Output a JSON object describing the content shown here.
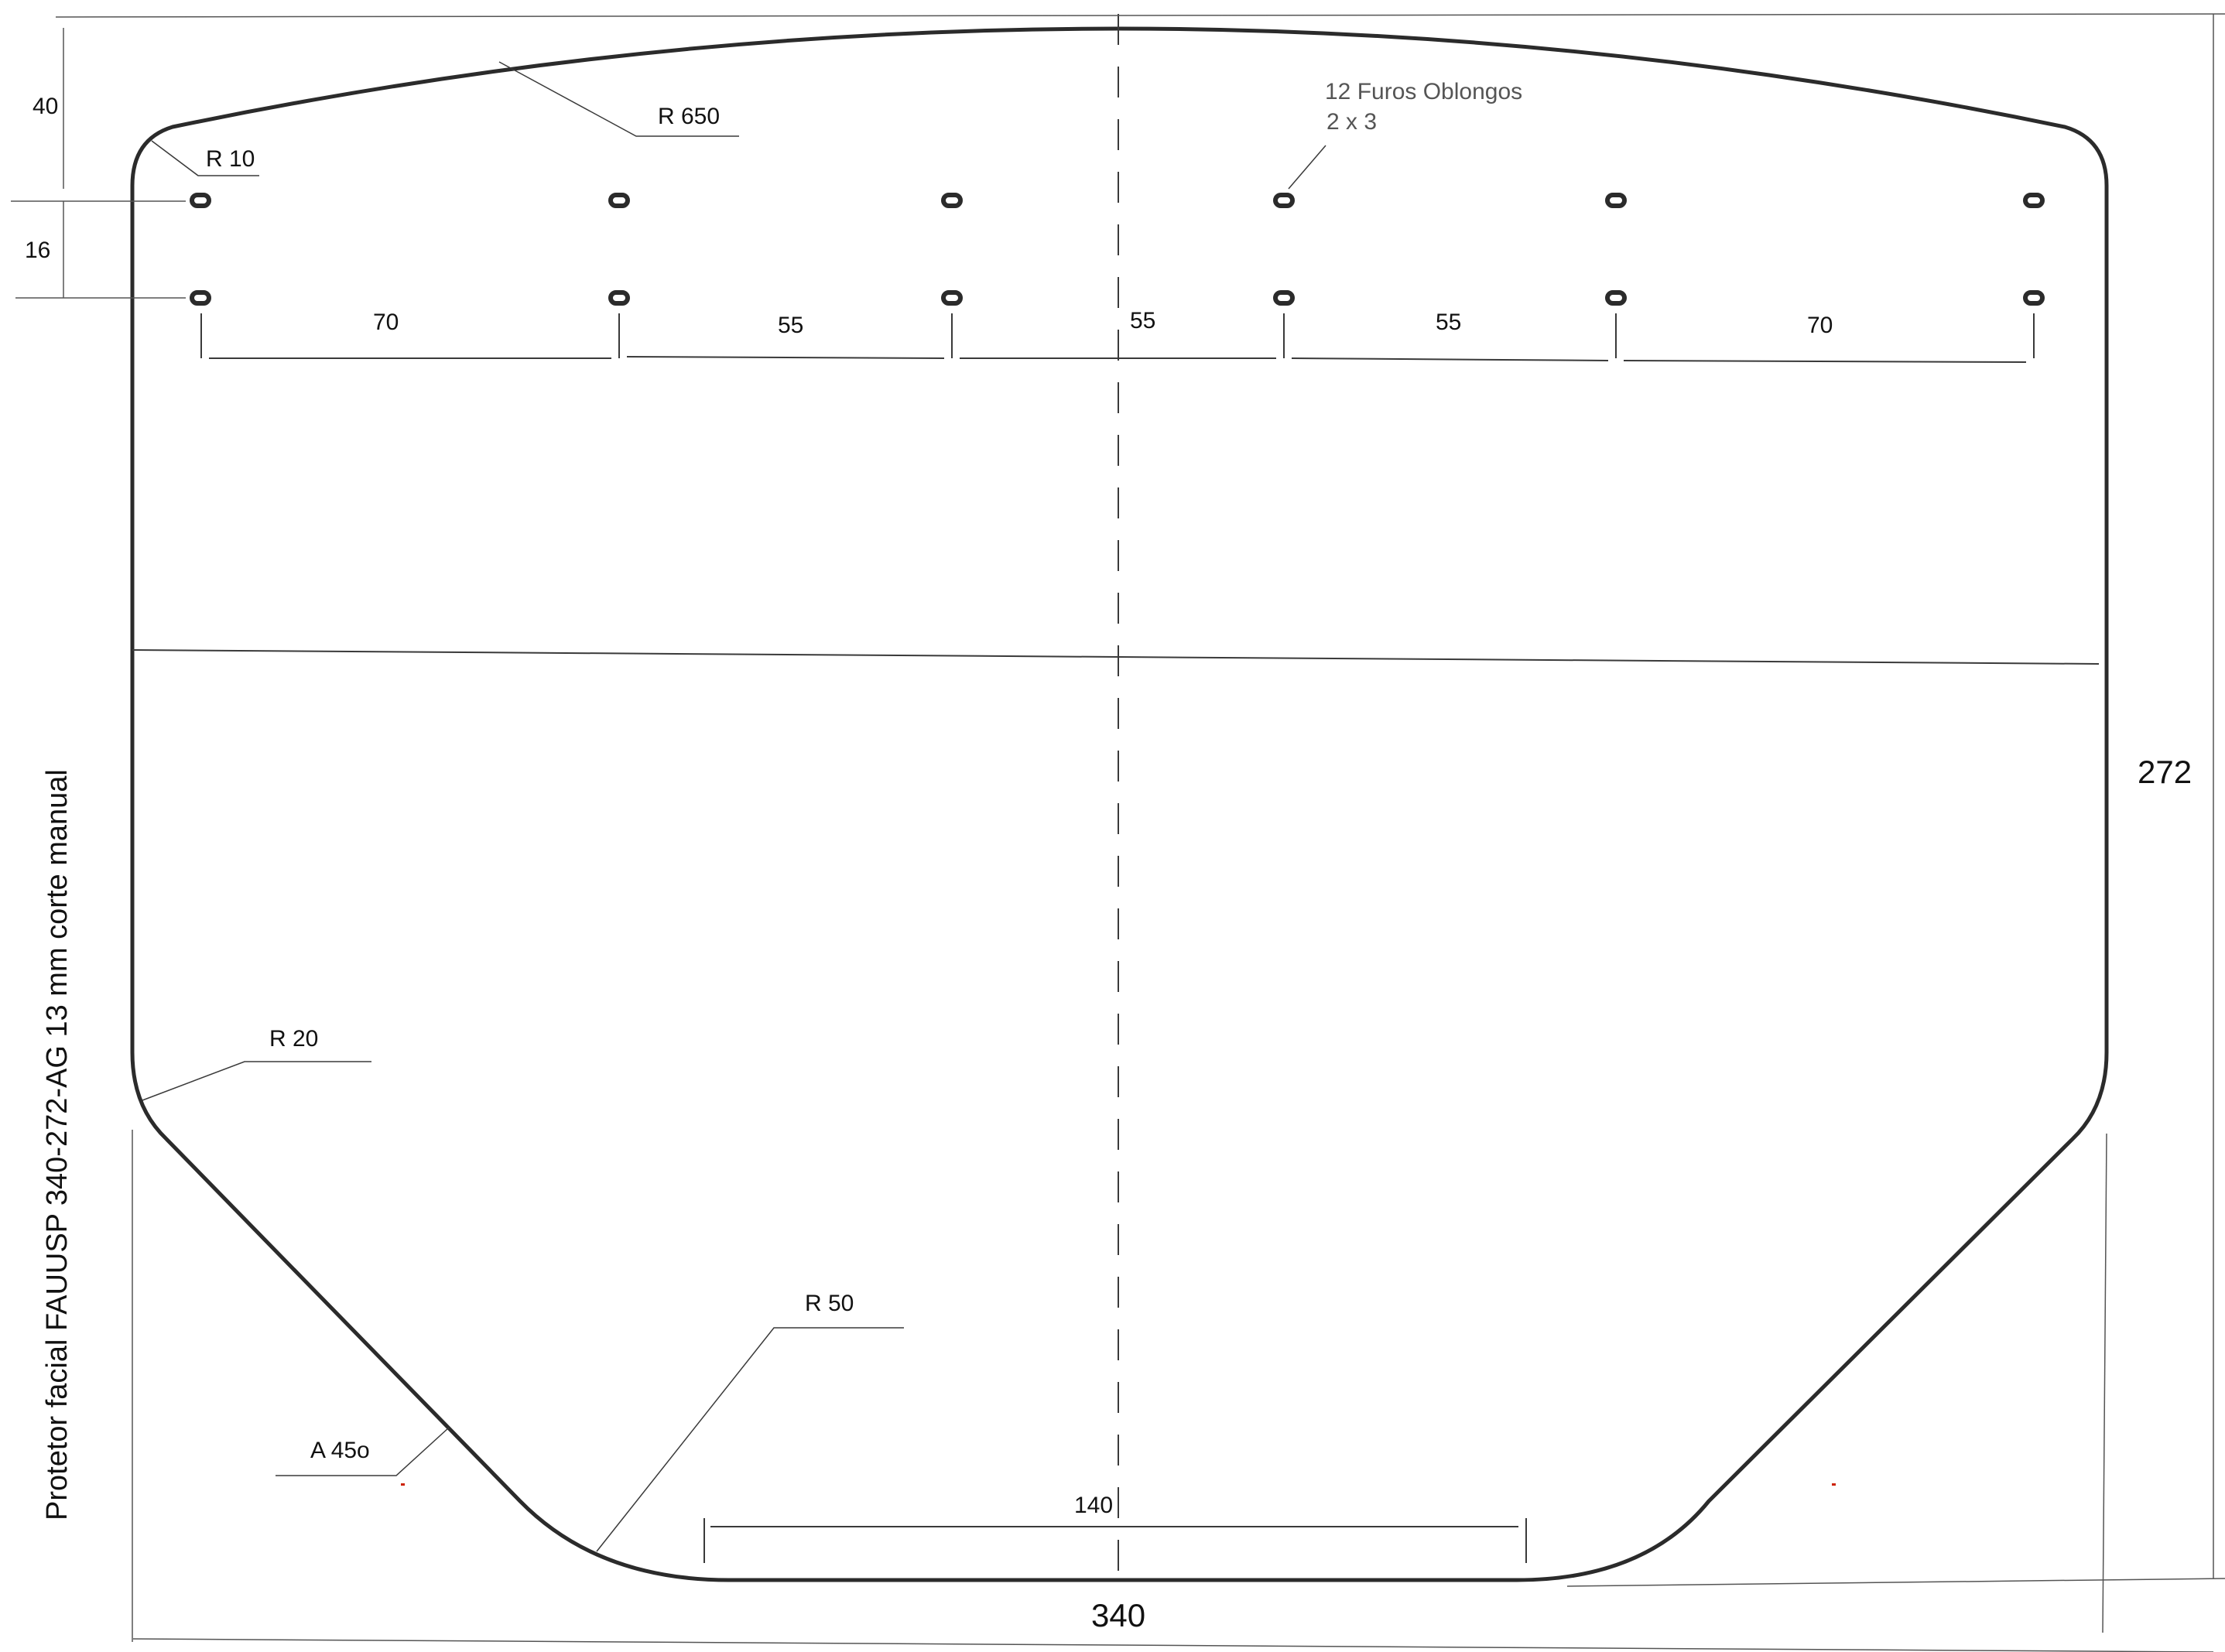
{
  "drawing": {
    "title": "Protetor facial FAUUSP 340-272-AG 13 mm corte manual",
    "overall_width": "340",
    "overall_height": "272",
    "top_offset": "40",
    "hole_row_spacing": "16",
    "hole_note_line1": "12 Furos Oblongos",
    "hole_note_line2": "2 x 3",
    "hole_spacings": [
      "70",
      "55",
      "55",
      "55",
      "70"
    ],
    "radius_top_arc": "R 650",
    "radius_top_corner": "R 10",
    "radius_side_corner": "R 20",
    "radius_bottom_corner": "R 50",
    "bevel_angle": "A 45o",
    "bottom_flat_width": "140"
  },
  "colors": {
    "outline": "#2b2b2b",
    "dimension_line": "#3a3a3a",
    "note_text": "#555555",
    "red_marks": "#cc2200"
  }
}
